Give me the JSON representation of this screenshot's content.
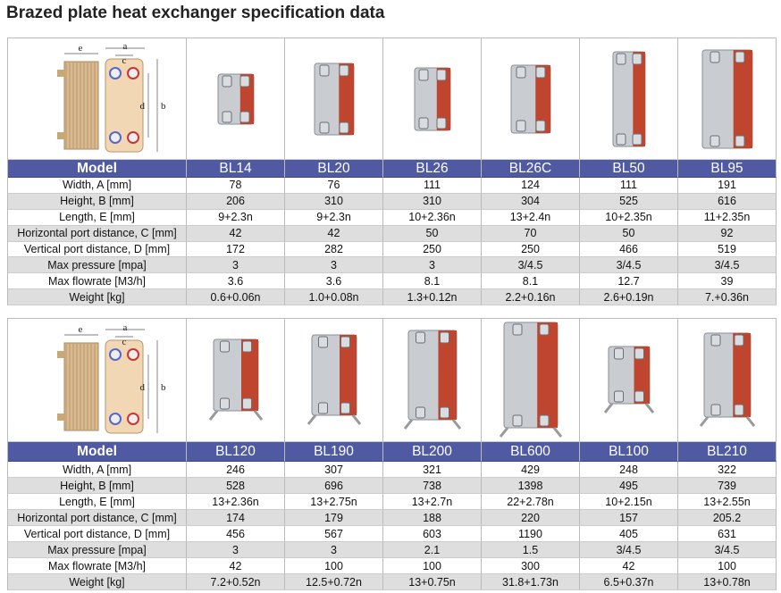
{
  "title": "Brazed plate heat exchanger specification data",
  "tables": [
    {
      "diagram_labels": [
        "e",
        "a",
        "c",
        "d",
        "b"
      ],
      "header": [
        "Model",
        "BL14",
        "BL20",
        "BL26",
        "BL26C",
        "BL50",
        "BL95"
      ],
      "rows": [
        [
          "Width, A [mm]",
          "78",
          "76",
          "111",
          "124",
          "111",
          "191"
        ],
        [
          "Height, B [mm]",
          "206",
          "310",
          "310",
          "304",
          "525",
          "616"
        ],
        [
          "Length, E [mm]",
          "9+2.3n",
          "9+2.3n",
          "10+2.36n",
          "13+2.4n",
          "10+2.35n",
          "11+2.35n"
        ],
        [
          "Horizontal port distance, C [mm]",
          "42",
          "42",
          "50",
          "70",
          "50",
          "92"
        ],
        [
          "Vertical port distance, D [mm]",
          "172",
          "282",
          "250",
          "250",
          "466",
          "519"
        ],
        [
          "Max pressure [mpa]",
          "3",
          "3",
          "3",
          "3/4.5",
          "3/4.5",
          "3/4.5"
        ],
        [
          "Max flowrate [M3/h]",
          "3.6",
          "3.6",
          "8.1",
          "8.1",
          "12.7",
          "39"
        ],
        [
          "Weight [kg]",
          "0.6+0.06n",
          "1.0+0.08n",
          "1.3+0.12n",
          "2.2+0.16n",
          "2.6+0.19n",
          "7.+0.36n"
        ]
      ]
    },
    {
      "diagram_labels": [
        "e",
        "a",
        "c",
        "d",
        "b"
      ],
      "header": [
        "Model",
        "BL120",
        "BL190",
        "BL200",
        "BL600",
        "BL100",
        "BL210"
      ],
      "rows": [
        [
          "Width, A [mm]",
          "246",
          "307",
          "321",
          "429",
          "248",
          "322"
        ],
        [
          "Height, B [mm]",
          "528",
          "696",
          "738",
          "1398",
          "495",
          "739"
        ],
        [
          "Length, E [mm]",
          "13+2.36n",
          "13+2.75n",
          "13+2.7n",
          "22+2.78n",
          "10+2.15n",
          "13+2.55n"
        ],
        [
          "Horizontal port distance, C [mm]",
          "174",
          "179",
          "188",
          "220",
          "157",
          "205.2"
        ],
        [
          "Vertical port distance, D [mm]",
          "456",
          "567",
          "603",
          "1190",
          "405",
          "631"
        ],
        [
          "Max pressure [mpa]",
          "3",
          "3",
          "2.1",
          "1.5",
          "3/4.5",
          "3/4.5"
        ],
        [
          "Max flowrate [M3/h]",
          "42",
          "100",
          "100",
          "300",
          "42",
          "100"
        ],
        [
          "Weight [kg]",
          "7.2+0.52n",
          "12.5+0.72n",
          "13+0.75n",
          "31.8+1.73n",
          "6.5+0.37n",
          "13+0.78n"
        ]
      ]
    }
  ]
}
